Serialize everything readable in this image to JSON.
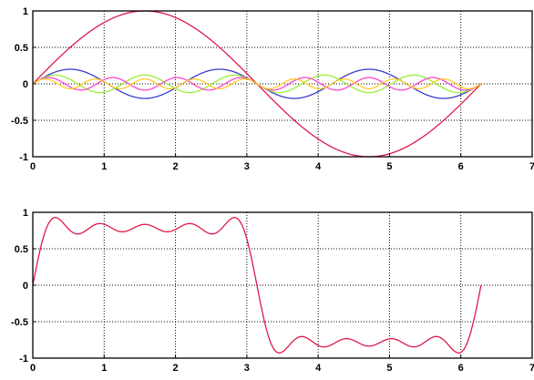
{
  "chart_data": [
    {
      "type": "line",
      "title": "",
      "xlabel": "",
      "ylabel": "",
      "xlim": [
        0,
        7
      ],
      "ylim": [
        -1,
        1
      ],
      "x_ticks": [
        "0",
        "1",
        "2",
        "3",
        "4",
        "5",
        "6",
        "7"
      ],
      "y_ticks": [
        "1",
        "0.5",
        "0",
        "-0.5",
        "-1"
      ],
      "grid": true,
      "x_range": [
        0,
        6.2832
      ],
      "series": [
        {
          "function": "sin(x)",
          "color": "#dd1a4a"
        },
        {
          "function": "0.2*sin(3x)",
          "color": "#3a3acc"
        },
        {
          "function": "0.12*sin(5x)",
          "color": "#99ee33"
        },
        {
          "function": "0.086*sin(7x)",
          "color": "#ff44cc"
        },
        {
          "function": "0.067*sin(9x)",
          "color": "#ffcc22"
        }
      ]
    },
    {
      "type": "line",
      "title": "",
      "xlabel": "",
      "ylabel": "",
      "xlim": [
        0,
        7
      ],
      "ylim": [
        -1,
        1
      ],
      "x_ticks": [
        "0",
        "1",
        "2",
        "3",
        "4",
        "5",
        "6",
        "7"
      ],
      "y_ticks": [
        "1",
        "0.5",
        "0",
        "-0.5",
        "-1"
      ],
      "grid": true,
      "x_range": [
        0,
        6.2832
      ],
      "series": [
        {
          "function": "sin(x)+sin(3x)/3+sin(5x)/5+sin(7x)/7+sin(9x)/9",
          "color": "#dd1a4a"
        }
      ]
    }
  ]
}
